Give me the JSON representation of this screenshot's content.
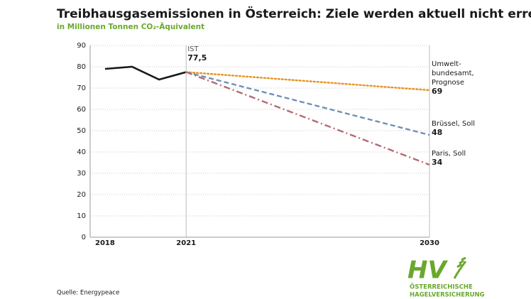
{
  "chart_data": {
    "type": "line",
    "title": "Treibhausgasemissionen in Österreich: Ziele werden aktuell nicht erreicht",
    "subtitle": "in Millionen Tonnen CO₂-Äquivalent",
    "source": "Quelle: Energypeace",
    "x": [
      2018,
      2019,
      2020,
      2021,
      2030
    ],
    "series": [
      {
        "name": "IST",
        "color": "#1a1a1a",
        "style": "solid",
        "values": [
          79,
          80,
          74,
          77.5,
          null
        ],
        "value_labels": [
          null,
          null,
          null,
          "77,5",
          null
        ]
      },
      {
        "name": "Umwelt-\nbundesamt,\nPrognose",
        "color": "#e8931e",
        "style": "dotted",
        "values": [
          null,
          null,
          null,
          77.5,
          69
        ]
      },
      {
        "name": "Brüssel, Soll",
        "color": "#6d8fb3",
        "style": "dashed",
        "values": [
          null,
          null,
          null,
          77.5,
          48
        ]
      },
      {
        "name": "Paris, Soll",
        "color": "#b36b73",
        "style": "dashdot",
        "values": [
          null,
          null,
          null,
          77.5,
          34
        ]
      }
    ],
    "xlim": [
      2017.45,
      2030
    ],
    "xticks": [
      2018,
      2021,
      2030
    ],
    "ylim": [
      0,
      90
    ],
    "yticks": [
      0,
      10,
      20,
      30,
      40,
      50,
      60,
      70,
      80,
      90
    ],
    "grid": true
  },
  "logo": {
    "mark": "HV",
    "lines": [
      "ÖSTERREICHISCHE",
      "HAGELVERSICHERUNG"
    ]
  }
}
